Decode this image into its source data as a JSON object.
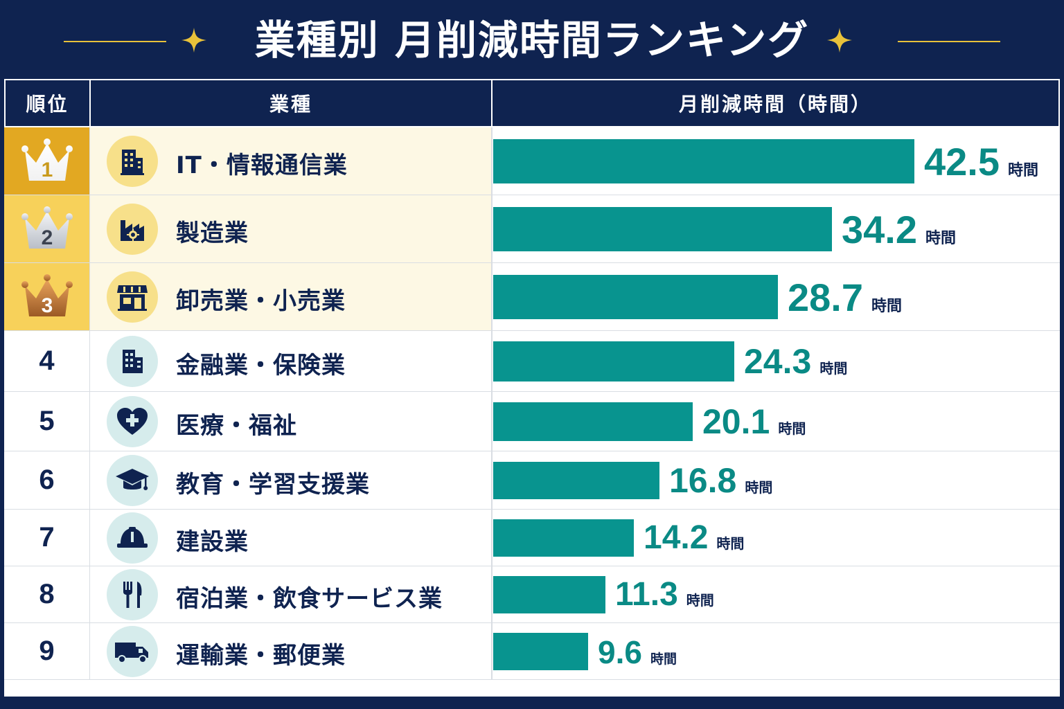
{
  "title": "業種別 月削減時間ランキング",
  "headers": {
    "rank": "順位",
    "industry": "業種",
    "value": "月削減時間（時間）"
  },
  "unit": "時間",
  "colors": {
    "navy": "#0f2350",
    "bar": "#08948f",
    "value_text": "#0a8a85",
    "gold_row": "#fdf8e4",
    "gold": "#e9b73a",
    "icon_top3": "#f7e08a",
    "icon_rest": "#d6ecec"
  },
  "chart_data": {
    "type": "bar",
    "orientation": "horizontal",
    "title": "業種別 月削減時間ランキング",
    "ylabel": "月削減時間（時間）",
    "categories": [
      "IT・情報通信業",
      "製造業",
      "卸売業・小売業",
      "金融業・保険業",
      "医療・福祉",
      "教育・学習支援業",
      "建設業",
      "宿泊業・飲食サービス業",
      "運輸業・郵便業"
    ],
    "values": [
      42.5,
      34.2,
      28.7,
      24.3,
      20.1,
      16.8,
      14.2,
      11.3,
      9.6
    ],
    "xlim": [
      0,
      42.5
    ]
  },
  "rows": [
    {
      "rank": "1",
      "industry": "IT・情報通信業",
      "value": "42.5",
      "icon": "building-icon",
      "medal": "gold"
    },
    {
      "rank": "2",
      "industry": "製造業",
      "value": "34.2",
      "icon": "factory-icon",
      "medal": "silver"
    },
    {
      "rank": "3",
      "industry": "卸売業・小売業",
      "value": "28.7",
      "icon": "store-icon",
      "medal": "bronze"
    },
    {
      "rank": "4",
      "industry": "金融業・保険業",
      "value": "24.3",
      "icon": "office-building-icon"
    },
    {
      "rank": "5",
      "industry": "医療・福祉",
      "value": "20.1",
      "icon": "heart-plus-icon"
    },
    {
      "rank": "6",
      "industry": "教育・学習支援業",
      "value": "16.8",
      "icon": "graduation-cap-icon"
    },
    {
      "rank": "7",
      "industry": "建設業",
      "value": "14.2",
      "icon": "hard-hat-icon"
    },
    {
      "rank": "8",
      "industry": "宿泊業・飲食サービス業",
      "value": "11.3",
      "icon": "fork-knife-icon"
    },
    {
      "rank": "9",
      "industry": "運輸業・郵便業",
      "value": "9.6",
      "icon": "truck-icon"
    }
  ]
}
